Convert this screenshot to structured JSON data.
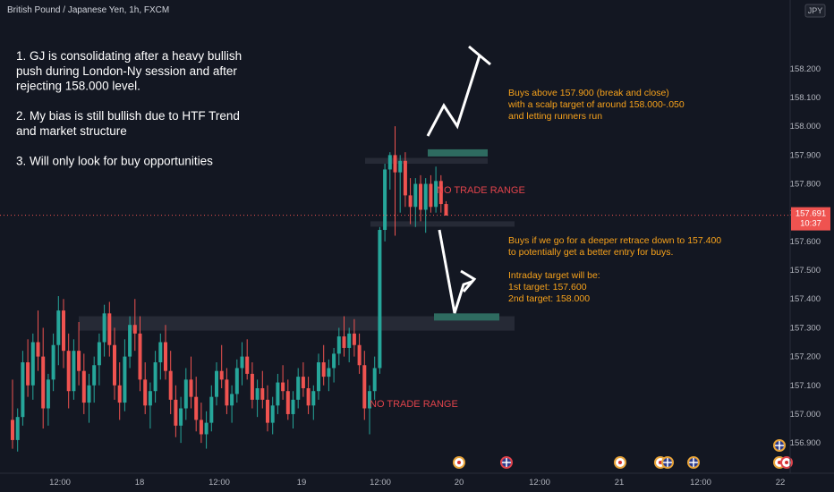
{
  "header": {
    "symbol_line": "British Pound / Japanese Yen, 1h, FXCM"
  },
  "price_axis": {
    "currency_badge": "JPY",
    "ticks": [
      "158.200",
      "158.100",
      "158.000",
      "157.900",
      "157.800",
      "157.700",
      "157.600",
      "157.500",
      "157.400",
      "157.300",
      "157.200",
      "157.100",
      "157.000",
      "156.900"
    ],
    "current_price": "157.691",
    "countdown": "10:37"
  },
  "time_axis": {
    "ticks": [
      "12:00",
      "18",
      "12:00",
      "19",
      "12:00",
      "20",
      "12:00",
      "21",
      "12:00",
      "22"
    ]
  },
  "annotations": {
    "left_notes": [
      "1. GJ is consolidating after a heavy bullish",
      "push during London-Ny session and after",
      "rejecting 158.000 level.",
      "",
      "2. My bias is still bullish due to HTF Trend",
      "and market structure",
      "",
      "3. Will only look for buy opportunities"
    ],
    "buy_above": [
      "Buys above 157.900 (break and close)",
      "with a scalp target of around 158.000-.050",
      "and letting runners run"
    ],
    "buy_retrace": [
      "Buys if we go for a deeper retrace down to 157.400",
      "to potentially get a better entry for buys.",
      "",
      "Intraday target will be:",
      "1st target: 157.600",
      "2nd target: 158.000"
    ],
    "no_trade_upper": "NO TRADE RANGE",
    "no_trade_lower": "NO TRADE RANGE"
  },
  "colors": {
    "background": "#131722",
    "bull": "#26a69a",
    "bear": "#ef5350",
    "text": "#ffffff",
    "orange": "#f7a21b",
    "no_trade": "#e0434b",
    "axis_text": "#b2b5be",
    "zone": "#2a2e39",
    "target_zone": "#2e6b60"
  },
  "chart_data": {
    "type": "candlestick",
    "title": "British Pound / Japanese Yen, 1h, FXCM",
    "ylim": [
      156.86,
      158.33
    ],
    "current_price": 157.691,
    "x_labels": [
      "12:00",
      "18",
      "12:00",
      "19",
      "12:00",
      "20",
      "12:00",
      "21",
      "12:00",
      "22"
    ],
    "ohlc": [
      [
        156.98,
        157.12,
        156.88,
        156.91
      ],
      [
        156.91,
        157.02,
        156.87,
        156.99
      ],
      [
        156.99,
        157.22,
        156.96,
        157.18
      ],
      [
        157.18,
        157.26,
        157.06,
        157.1
      ],
      [
        157.1,
        157.28,
        157.05,
        157.25
      ],
      [
        157.25,
        157.36,
        157.15,
        157.2
      ],
      [
        157.2,
        157.3,
        156.95,
        157.02
      ],
      [
        157.02,
        157.14,
        156.96,
        157.12
      ],
      [
        157.12,
        157.28,
        157.08,
        157.24
      ],
      [
        157.24,
        157.41,
        157.17,
        157.36
      ],
      [
        157.36,
        157.4,
        157.16,
        157.22
      ],
      [
        157.22,
        157.28,
        157.02,
        157.08
      ],
      [
        157.08,
        157.26,
        157.05,
        157.22
      ],
      [
        157.22,
        157.32,
        157.1,
        157.15
      ],
      [
        157.15,
        157.21,
        157.0,
        157.04
      ],
      [
        157.04,
        157.14,
        156.97,
        157.1
      ],
      [
        157.1,
        157.2,
        157.04,
        157.17
      ],
      [
        157.17,
        157.28,
        157.1,
        157.25
      ],
      [
        157.25,
        157.38,
        157.2,
        157.35
      ],
      [
        157.35,
        157.39,
        157.2,
        157.24
      ],
      [
        157.24,
        157.3,
        157.05,
        157.1
      ],
      [
        157.1,
        157.18,
        156.98,
        157.04
      ],
      [
        157.04,
        157.26,
        157.01,
        157.2
      ],
      [
        157.2,
        157.34,
        157.16,
        157.31
      ],
      [
        157.31,
        157.4,
        157.22,
        157.28
      ],
      [
        157.28,
        157.34,
        157.08,
        157.12
      ],
      [
        157.12,
        157.18,
        157.0,
        157.03
      ],
      [
        157.03,
        157.11,
        156.95,
        157.08
      ],
      [
        157.08,
        157.22,
        157.04,
        157.18
      ],
      [
        157.18,
        157.28,
        157.12,
        157.25
      ],
      [
        157.25,
        157.31,
        157.12,
        157.15
      ],
      [
        157.15,
        157.22,
        157.0,
        157.05
      ],
      [
        157.05,
        157.1,
        156.92,
        156.96
      ],
      [
        156.96,
        157.06,
        156.9,
        157.02
      ],
      [
        157.02,
        157.16,
        156.98,
        157.12
      ],
      [
        157.12,
        157.2,
        157.02,
        157.06
      ],
      [
        157.06,
        157.13,
        156.94,
        156.98
      ],
      [
        156.98,
        157.04,
        156.9,
        156.93
      ],
      [
        156.93,
        157.01,
        156.88,
        156.97
      ],
      [
        156.97,
        157.1,
        156.94,
        157.06
      ],
      [
        157.06,
        157.18,
        157.03,
        157.15
      ],
      [
        157.15,
        157.24,
        157.09,
        157.12
      ],
      [
        157.12,
        157.16,
        157.0,
        157.03
      ],
      [
        157.03,
        157.1,
        156.97,
        157.07
      ],
      [
        157.07,
        157.19,
        157.04,
        157.16
      ],
      [
        157.16,
        157.25,
        157.1,
        157.2
      ],
      [
        157.2,
        157.26,
        157.12,
        157.14
      ],
      [
        157.14,
        157.18,
        157.02,
        157.05
      ],
      [
        157.05,
        157.12,
        156.99,
        157.09
      ],
      [
        157.09,
        157.15,
        157.02,
        157.05
      ],
      [
        157.05,
        157.1,
        156.94,
        156.97
      ],
      [
        156.97,
        157.06,
        156.93,
        157.03
      ],
      [
        157.03,
        157.14,
        157.0,
        157.11
      ],
      [
        157.11,
        157.17,
        157.05,
        157.08
      ],
      [
        157.08,
        157.12,
        156.98,
        157.0
      ],
      [
        157.0,
        157.08,
        156.95,
        157.05
      ],
      [
        157.05,
        157.16,
        157.02,
        157.13
      ],
      [
        157.13,
        157.18,
        157.06,
        157.09
      ],
      [
        157.09,
        157.13,
        157.0,
        157.03
      ],
      [
        157.03,
        157.1,
        156.98,
        157.08
      ],
      [
        157.08,
        157.21,
        157.05,
        157.18
      ],
      [
        157.18,
        157.24,
        157.1,
        157.13
      ],
      [
        157.13,
        157.19,
        157.08,
        157.16
      ],
      [
        157.16,
        157.23,
        157.11,
        157.21
      ],
      [
        157.21,
        157.3,
        157.17,
        157.27
      ],
      [
        157.27,
        157.34,
        157.2,
        157.23
      ],
      [
        157.23,
        157.3,
        157.18,
        157.28
      ],
      [
        157.28,
        157.33,
        157.2,
        157.24
      ],
      [
        157.24,
        157.28,
        157.14,
        157.17
      ],
      [
        157.17,
        157.22,
        156.98,
        157.02
      ],
      [
        157.02,
        157.1,
        156.93,
        157.08
      ],
      [
        157.08,
        157.2,
        157.05,
        157.16
      ],
      [
        157.16,
        157.65,
        157.14,
        157.64
      ],
      [
        157.64,
        157.87,
        157.6,
        157.85
      ],
      [
        157.85,
        157.91,
        157.78,
        157.9
      ],
      [
        157.9,
        158.0,
        157.62,
        157.84
      ],
      [
        157.84,
        157.9,
        157.7,
        157.88
      ],
      [
        157.88,
        157.91,
        157.72,
        157.76
      ],
      [
        157.76,
        157.82,
        157.66,
        157.72
      ],
      [
        157.72,
        157.82,
        157.65,
        157.8
      ],
      [
        157.8,
        157.83,
        157.67,
        157.71
      ],
      [
        157.71,
        157.82,
        157.63,
        157.8
      ],
      [
        157.8,
        157.83,
        157.7,
        157.72
      ],
      [
        157.72,
        157.86,
        157.7,
        157.81
      ],
      [
        157.81,
        157.83,
        157.7,
        157.73
      ],
      [
        157.73,
        157.74,
        157.69,
        157.69
      ]
    ],
    "zones": [
      {
        "from": 157.87,
        "to": 157.89
      },
      {
        "from": 157.655,
        "to": 157.67
      },
      {
        "from": 157.29,
        "to": 157.34
      }
    ],
    "target_boxes": [
      {
        "from": 157.9,
        "to": 157.92
      },
      {
        "from": 157.33,
        "to": 157.35
      }
    ]
  }
}
